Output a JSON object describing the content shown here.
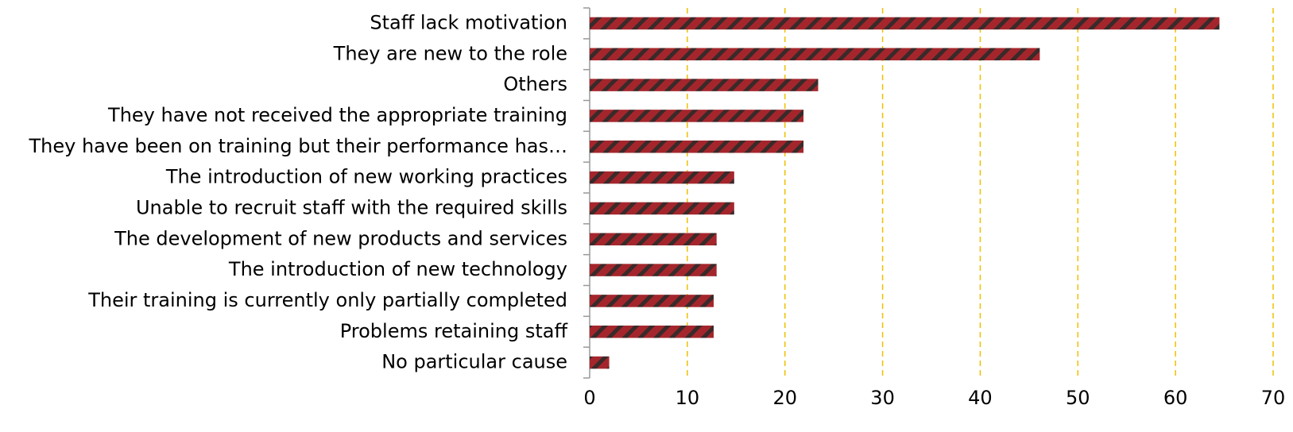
{
  "chart_data": {
    "type": "bar",
    "orientation": "horizontal",
    "categories": [
      "Staff lack motivation",
      "They are new to the role ",
      "Others",
      "They have not received the appropriate training",
      "They have been on training but their performance has…",
      "The introduction of new working practices ",
      "Unable to recruit staff with the required skills",
      "The development of new products and services",
      "The introduction of new technology",
      "Their training is currently only partially completed",
      "Problems retaining staff",
      "No particular cause "
    ],
    "values": [
      64.5,
      46.1,
      23.4,
      21.9,
      21.9,
      14.8,
      14.8,
      13.0,
      13.0,
      12.7,
      12.7,
      2.0
    ],
    "color": "#a4262c",
    "xlim": [
      0,
      70
    ],
    "xticks": [
      0,
      10,
      20,
      30,
      40,
      50,
      60,
      70
    ],
    "grid": true
  }
}
